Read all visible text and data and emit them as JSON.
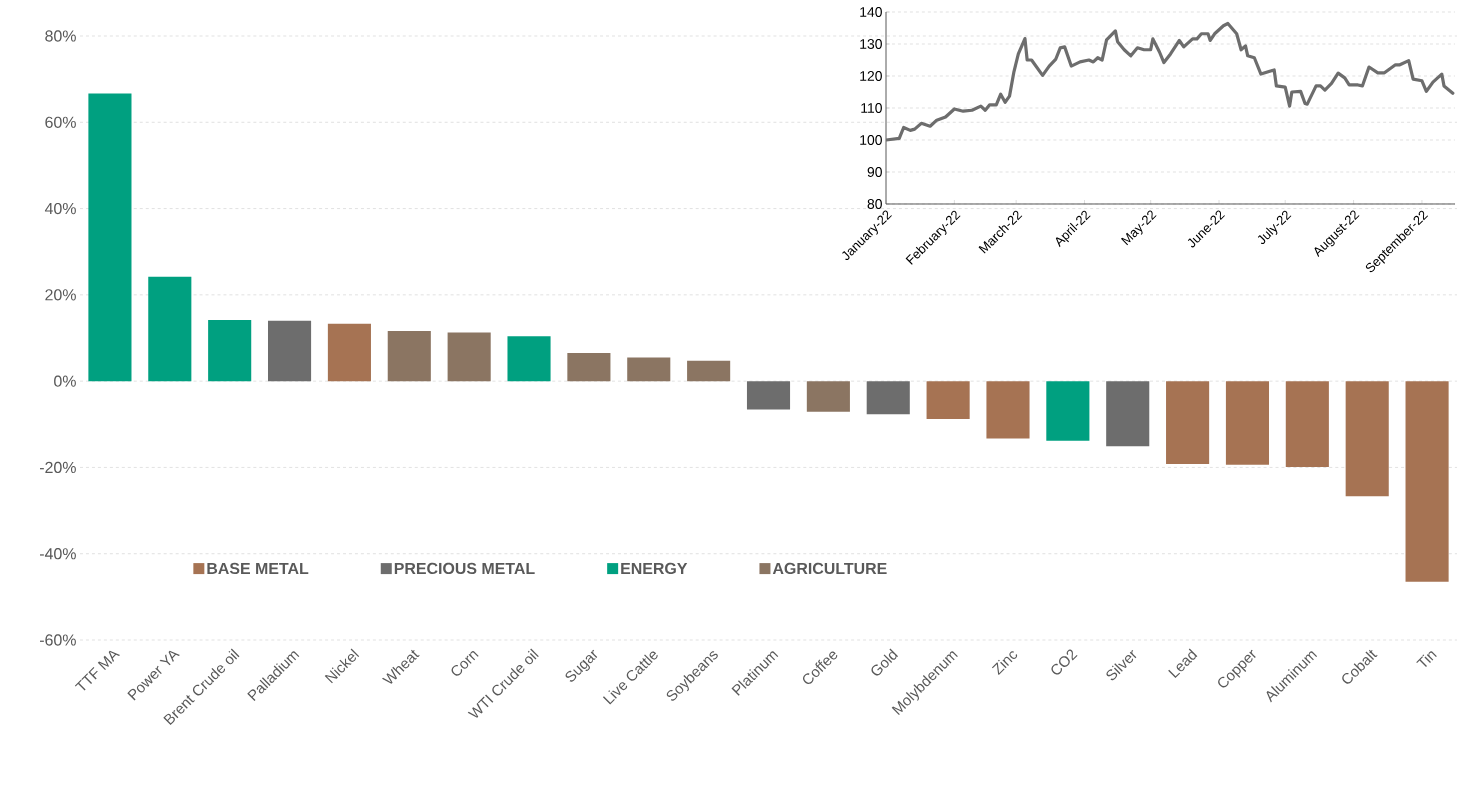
{
  "chart_data": [
    {
      "type": "bar",
      "categories": [
        "TTF MA",
        "Power YA",
        "Brent Crude oil",
        "Palladium",
        "Nickel",
        "Wheat",
        "Corn",
        "WTI Crude oil",
        "Sugar",
        "Live Cattle",
        "Soybeans",
        "Platinum",
        "Coffee",
        "Gold",
        "Molybdenum",
        "Zinc",
        "CO2",
        "Silver",
        "Lead",
        "Copper",
        "Aluminum",
        "Cobalt",
        "Tin"
      ],
      "series": [
        {
          "name": "BASE METAL",
          "color": "#a67353",
          "values": [
            null,
            null,
            null,
            null,
            13.3,
            null,
            null,
            null,
            null,
            null,
            null,
            null,
            null,
            null,
            -8.8,
            -13.3,
            null,
            null,
            -19.2,
            -19.4,
            -19.9,
            -26.7,
            -46.5
          ]
        },
        {
          "name": "PRECIOUS METAL",
          "color": "#6d6d6d",
          "values": [
            null,
            null,
            null,
            14.0,
            null,
            null,
            null,
            null,
            null,
            null,
            null,
            -6.6,
            null,
            -7.7,
            null,
            null,
            null,
            -15.1,
            null,
            null,
            null,
            null,
            null
          ]
        },
        {
          "name": "ENERGY",
          "color": "#00a080",
          "values": [
            66.7,
            24.2,
            14.2,
            null,
            null,
            null,
            null,
            10.4,
            null,
            null,
            null,
            null,
            null,
            null,
            null,
            null,
            -13.8,
            null,
            null,
            null,
            null,
            null,
            null
          ]
        },
        {
          "name": "AGRICULTURE",
          "color": "#8b7562",
          "values": [
            null,
            null,
            null,
            null,
            null,
            11.6,
            11.3,
            null,
            6.5,
            5.5,
            4.7,
            null,
            -7.1,
            null,
            null,
            null,
            null,
            null,
            null,
            null,
            null,
            null,
            null
          ]
        }
      ],
      "ylim": [
        -60,
        80
      ],
      "yticks": [
        {
          "value": -60,
          "label": "-60%"
        },
        {
          "value": -40,
          "label": "-40%"
        },
        {
          "value": -20,
          "label": "-20%"
        },
        {
          "value": 0,
          "label": "0%"
        },
        {
          "value": 20,
          "label": "20%"
        },
        {
          "value": 40,
          "label": "40%"
        },
        {
          "value": 60,
          "label": "60%"
        },
        {
          "value": 80,
          "label": "80%"
        }
      ],
      "grid": "y",
      "legend": "bottom"
    },
    {
      "type": "line",
      "series": [
        {
          "color": "#6d6d6d",
          "x": [
            "2022-01-01",
            "2022-01-07",
            "2022-01-09",
            "2022-01-12",
            "2022-01-14",
            "2022-01-17",
            "2022-01-21",
            "2022-01-24",
            "2022-01-28",
            "2022-02-01",
            "2022-02-05",
            "2022-02-09",
            "2022-02-13",
            "2022-02-15",
            "2022-02-17",
            "2022-02-20",
            "2022-02-22",
            "2022-02-24",
            "2022-02-26",
            "2022-02-28",
            "2022-03-02",
            "2022-03-05",
            "2022-03-06",
            "2022-03-08",
            "2022-03-13",
            "2022-03-16",
            "2022-03-19",
            "2022-03-21",
            "2022-03-23",
            "2022-03-26",
            "2022-03-30",
            "2022-04-03",
            "2022-04-05",
            "2022-04-07",
            "2022-04-09",
            "2022-04-11",
            "2022-04-15",
            "2022-04-16",
            "2022-04-19",
            "2022-04-22",
            "2022-04-25",
            "2022-04-28",
            "2022-05-01",
            "2022-05-02",
            "2022-05-05",
            "2022-05-07",
            "2022-05-10",
            "2022-05-14",
            "2022-05-16",
            "2022-05-20",
            "2022-05-22",
            "2022-05-24",
            "2022-05-27",
            "2022-05-28",
            "2022-05-30",
            "2022-06-03",
            "2022-06-05",
            "2022-06-09",
            "2022-06-11",
            "2022-06-13",
            "2022-06-14",
            "2022-06-17",
            "2022-06-20",
            "2022-06-24",
            "2022-06-26",
            "2022-06-27",
            "2022-07-01",
            "2022-07-03",
            "2022-07-04",
            "2022-07-08",
            "2022-07-10",
            "2022-07-11",
            "2022-07-15",
            "2022-07-17",
            "2022-07-19",
            "2022-07-22",
            "2022-07-25",
            "2022-07-28",
            "2022-07-30",
            "2022-08-03",
            "2022-08-05",
            "2022-08-08",
            "2022-08-12",
            "2022-08-15",
            "2022-08-20",
            "2022-08-22",
            "2022-08-26",
            "2022-08-28",
            "2022-09-01",
            "2022-09-03",
            "2022-09-06",
            "2022-09-10",
            "2022-09-11",
            "2022-09-15"
          ],
          "values": [
            100,
            100.5,
            103.9,
            103,
            103.4,
            105.2,
            104.3,
            106.2,
            107.2,
            109.7,
            109,
            109.3,
            110.6,
            109.3,
            111,
            111,
            114.3,
            111.8,
            113.7,
            121.3,
            126.9,
            131.7,
            125,
            125,
            120.2,
            123.1,
            125.3,
            128.8,
            129.1,
            123.1,
            124.4,
            125,
            124.4,
            125.7,
            125,
            131.3,
            134.1,
            130.7,
            128.2,
            126.3,
            128.8,
            128.2,
            128.2,
            131.6,
            127.5,
            124.2,
            126.9,
            131.1,
            129.1,
            131.6,
            131.6,
            133.2,
            133.2,
            131.1,
            133.2,
            135.7,
            136.4,
            133.2,
            128.2,
            129.4,
            126.3,
            125.7,
            120.6,
            121.5,
            121.9,
            116.9,
            116.5,
            110.6,
            115,
            115.2,
            111.4,
            111.2,
            116.9,
            116.9,
            115.6,
            117.7,
            120.9,
            119.4,
            117.2,
            117.2,
            116.9,
            122.8,
            121,
            121,
            123.5,
            123.5,
            124.8,
            119,
            118.5,
            115.2,
            118.1,
            120.6,
            116.9,
            114.6
          ]
        }
      ],
      "xlim": [
        "2022-01-01",
        "2022-09-16"
      ],
      "xticks": [
        {
          "value": "2022-01-01",
          "label": "January-22"
        },
        {
          "value": "2022-02-01",
          "label": "February-22"
        },
        {
          "value": "2022-03-01",
          "label": "March-22"
        },
        {
          "value": "2022-04-01",
          "label": "April-22"
        },
        {
          "value": "2022-05-01",
          "label": "May-22"
        },
        {
          "value": "2022-06-01",
          "label": "June-22"
        },
        {
          "value": "2022-07-01",
          "label": "July-22"
        },
        {
          "value": "2022-08-01",
          "label": "August-22"
        },
        {
          "value": "2022-09-01",
          "label": "September-22"
        }
      ],
      "ylim": [
        80,
        140
      ],
      "yticks": [
        80,
        90,
        100,
        110,
        120,
        130,
        140
      ],
      "grid": "y"
    }
  ]
}
